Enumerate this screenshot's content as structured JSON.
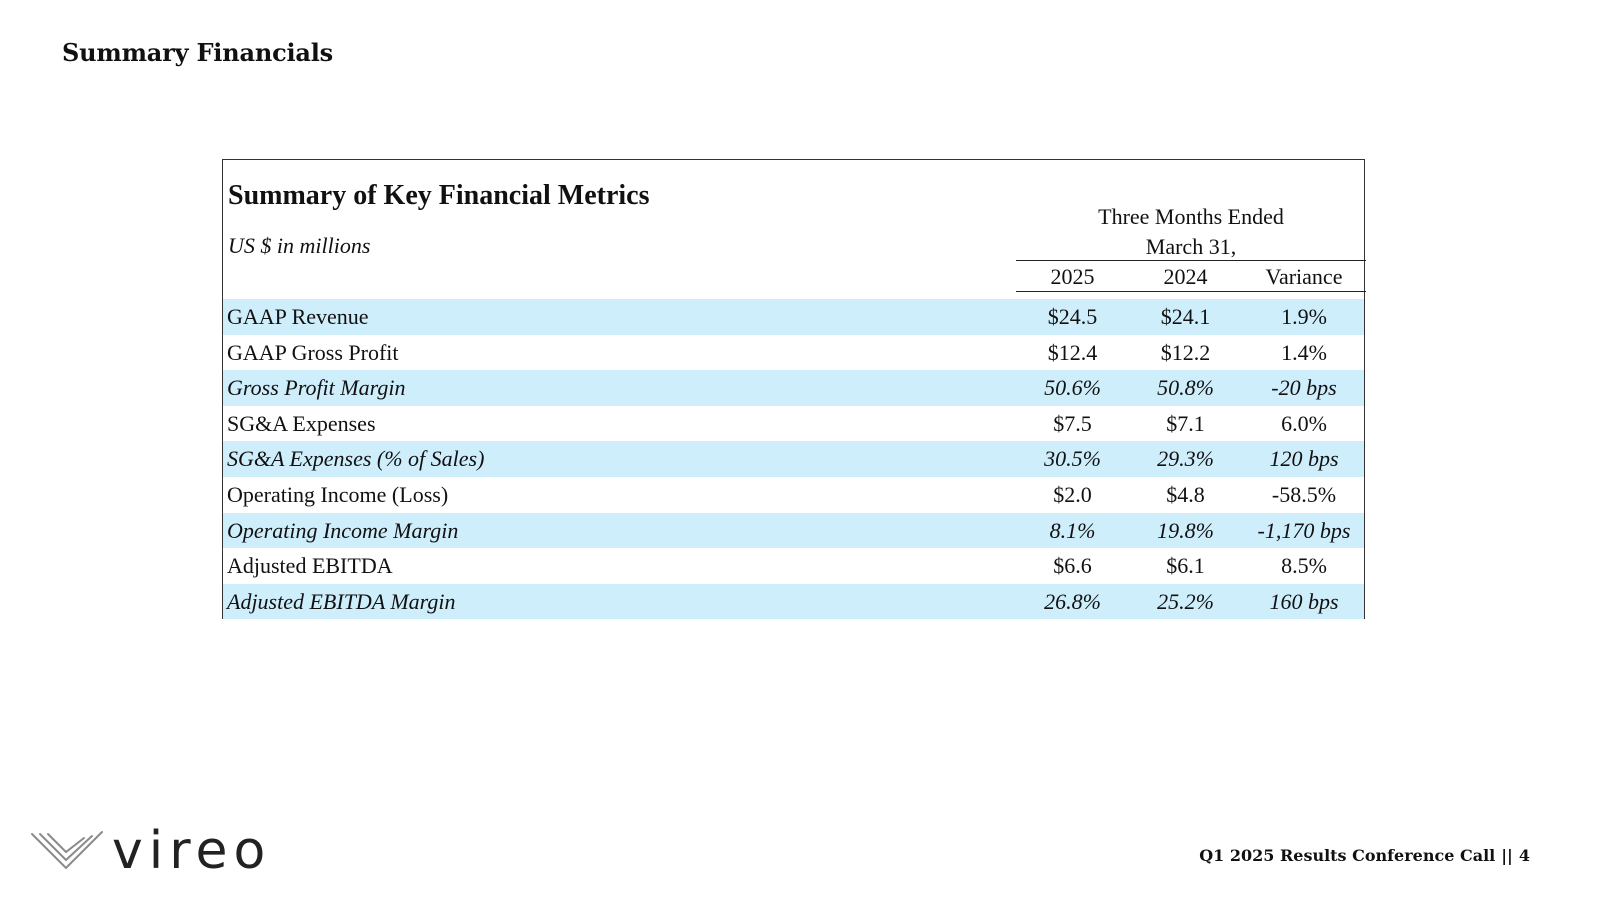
{
  "slide": {
    "title": "Summary Financials"
  },
  "table": {
    "title": "Summary of Key Financial Metrics",
    "units": "US $ in millions",
    "period_line1": "Three Months Ended",
    "period_line2": "March 31,",
    "columns": [
      "2025",
      "2024",
      "Variance"
    ],
    "rows": [
      {
        "label": "GAAP Revenue",
        "values": [
          "$24.5",
          "$24.1",
          "1.9%"
        ],
        "style": "shaded"
      },
      {
        "label": "GAAP Gross Profit",
        "values": [
          "$12.4",
          "$12.2",
          "1.4%"
        ],
        "style": "plain"
      },
      {
        "label": "Gross Profit Margin",
        "values": [
          "50.6%",
          "50.8%",
          "-20 bps"
        ],
        "style": "shaded-italic"
      },
      {
        "label": "SG&A Expenses",
        "values": [
          "$7.5",
          "$7.1",
          "6.0%"
        ],
        "style": "plain"
      },
      {
        "label": "SG&A Expenses (% of Sales)",
        "values": [
          "30.5%",
          "29.3%",
          "120 bps"
        ],
        "style": "shaded-italic"
      },
      {
        "label": "Operating Income (Loss)",
        "values": [
          "$2.0",
          "$4.8",
          "-58.5%"
        ],
        "style": "plain"
      },
      {
        "label": "Operating Income Margin",
        "values": [
          "8.1%",
          "19.8%",
          "-1,170 bps"
        ],
        "style": "shaded-italic"
      },
      {
        "label": "Adjusted EBITDA",
        "values": [
          "$6.6",
          "$6.1",
          "8.5%"
        ],
        "style": "plain"
      },
      {
        "label": "Adjusted EBITDA Margin",
        "values": [
          "26.8%",
          "25.2%",
          "160 bps"
        ],
        "style": "shaded-italic"
      }
    ]
  },
  "logo": {
    "text": "vireo",
    "icon": "vireo-bird-icon",
    "color": "#222222"
  },
  "footer": {
    "call_label": "Q1 2025 Results Conference Call",
    "separator": "||",
    "page_number": "4"
  },
  "colors": {
    "row_shade": "#cfeefc",
    "border": "#333333"
  }
}
